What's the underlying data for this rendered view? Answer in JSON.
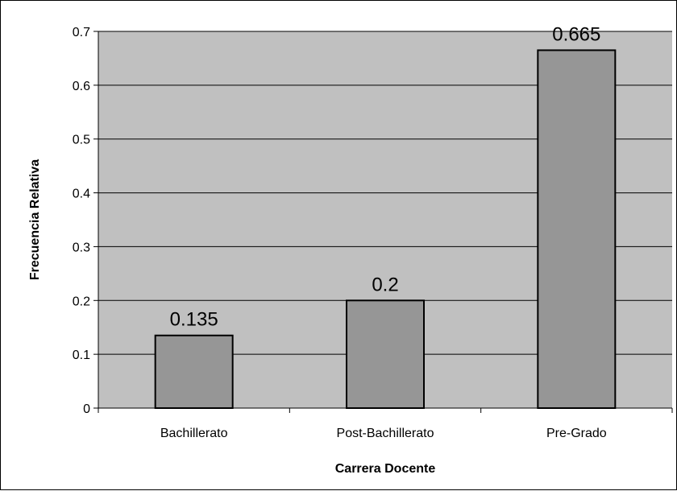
{
  "chart_data": {
    "type": "bar",
    "title": "",
    "xlabel": "Carrera Docente",
    "ylabel": "Frecuencia Relativa",
    "categories": [
      "Bachillerato",
      "Post-Bachillerato",
      "Pre-Grado"
    ],
    "values": [
      0.135,
      0.2,
      0.665
    ],
    "data_labels": [
      "0.135",
      "0.2",
      "0.665"
    ],
    "ylim": [
      0,
      0.7
    ],
    "yticks": [
      0,
      0.1,
      0.2,
      0.3,
      0.4,
      0.5,
      0.6,
      0.7
    ],
    "ytick_labels": [
      "0",
      "0.1",
      "0.2",
      "0.3",
      "0.4",
      "0.5",
      "0.6",
      "0.7"
    ],
    "grid": "horizontal",
    "legend": "none",
    "colors": {
      "plot_background": "#c0c0c0",
      "bar_fill": "#969696",
      "bar_stroke": "#000000",
      "gridline": "#000000"
    }
  }
}
